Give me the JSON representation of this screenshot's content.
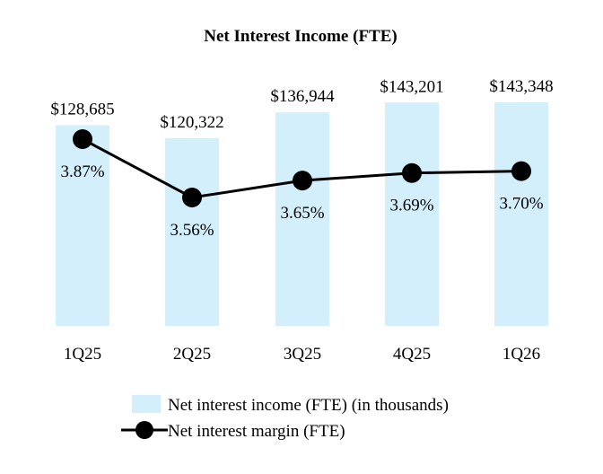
{
  "chart_data": {
    "type": "bar",
    "title": "Net Interest Income (FTE)",
    "categories": [
      "1Q25",
      "2Q25",
      "3Q25",
      "4Q25",
      "1Q26"
    ],
    "series": [
      {
        "name": "Net interest income (FTE) (in thousands)",
        "type": "bar",
        "values": [
          128685,
          120322,
          136944,
          143201,
          143348
        ],
        "labels": [
          "$128,685",
          "$120,322",
          "$136,944",
          "$143,201",
          "$143,348"
        ],
        "color": "#d4effc"
      },
      {
        "name": "Net interest margin (FTE)",
        "type": "line",
        "values": [
          3.87,
          3.56,
          3.65,
          3.69,
          3.7
        ],
        "labels": [
          "3.87%",
          "3.56%",
          "3.65%",
          "3.69%",
          "3.70%"
        ],
        "color": "#000000"
      }
    ],
    "legend_position": "bottom",
    "grid": false
  }
}
